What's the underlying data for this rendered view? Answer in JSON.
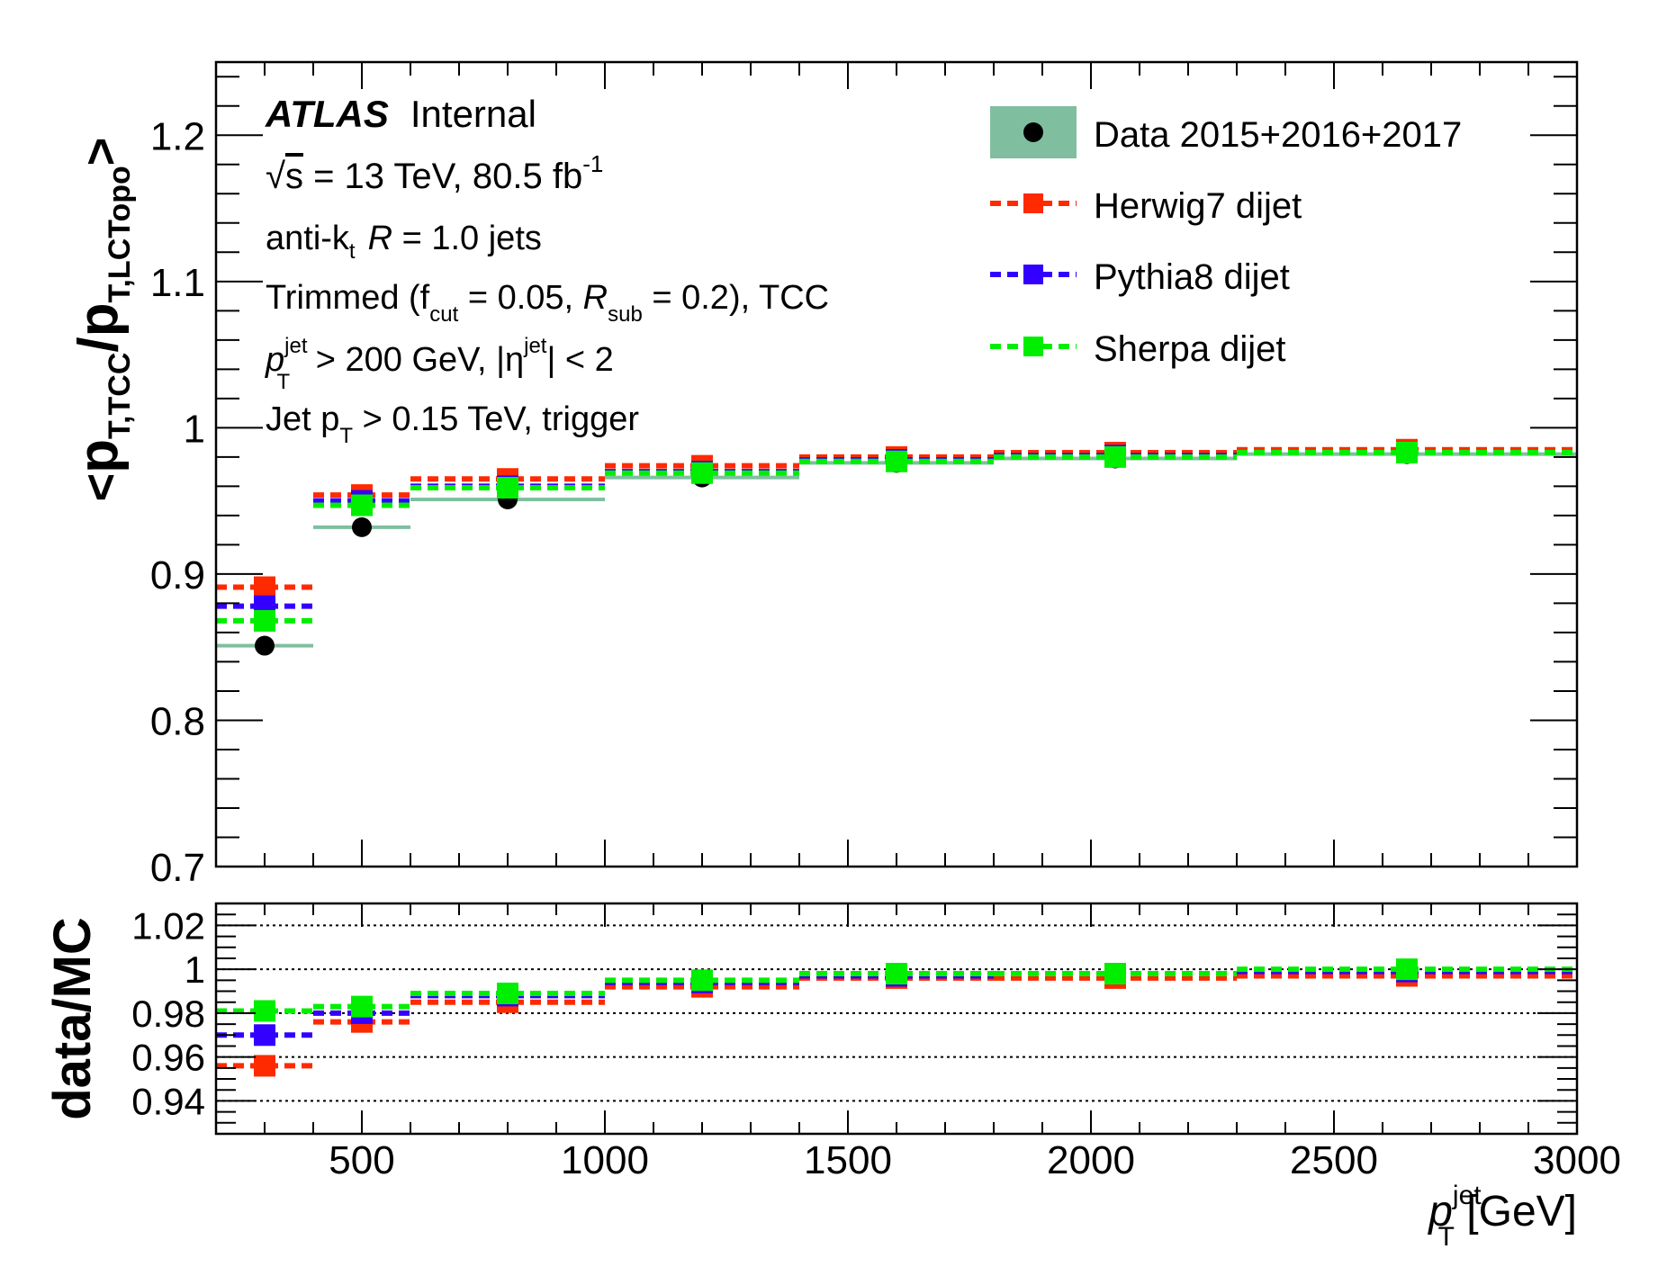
{
  "chart_data": [
    {
      "type": "scatter",
      "panel": "main",
      "ylabel": {
        "open": "<",
        "p1": "p",
        "s1": "T,TCC",
        "slash": "/",
        "p2": "p",
        "s2": "T,LCTopo",
        "close": ">"
      },
      "xlim": [
        200,
        3000
      ],
      "ylim": [
        0.7,
        1.25
      ],
      "y_ticks": [
        0.7,
        0.8,
        0.9,
        1.0,
        1.1,
        1.2
      ],
      "y_tick_labels": [
        "0.7",
        "0.8",
        "0.9",
        "1",
        "1.1",
        "1.2"
      ],
      "bins": [
        [
          200,
          400
        ],
        [
          400,
          600
        ],
        [
          600,
          1000
        ],
        [
          1000,
          1400
        ],
        [
          1400,
          1800
        ],
        [
          1800,
          2300
        ],
        [
          2300,
          3000
        ]
      ],
      "series": [
        {
          "name": "Data 2015+2016+2017",
          "marker": "circle",
          "color": "#000000",
          "band_color": "#7fbf9f",
          "x": [
            300,
            500,
            800,
            1200,
            1600,
            2050,
            2650
          ],
          "y": [
            0.851,
            0.932,
            0.951,
            0.966,
            0.976,
            0.979,
            0.982
          ]
        },
        {
          "name": "Herwig7 dijet",
          "marker": "square",
          "color": "#ff2a00",
          "x": [
            300,
            500,
            800,
            1200,
            1600,
            2050,
            2650
          ],
          "y": [
            0.891,
            0.954,
            0.965,
            0.974,
            0.98,
            0.983,
            0.985
          ]
        },
        {
          "name": "Pythia8 dijet",
          "marker": "square",
          "color": "#3300ff",
          "x": [
            300,
            500,
            800,
            1200,
            1600,
            2050,
            2650
          ],
          "y": [
            0.878,
            0.95,
            0.96,
            0.97,
            0.978,
            0.981,
            0.983
          ]
        },
        {
          "name": "Sherpa dijet",
          "marker": "square",
          "color": "#00ee00",
          "x": [
            300,
            500,
            800,
            1200,
            1600,
            2050,
            2650
          ],
          "y": [
            0.868,
            0.947,
            0.959,
            0.969,
            0.977,
            0.98,
            0.983
          ]
        }
      ],
      "annotations": {
        "atlas": "ATLAS",
        "internal": "Internal",
        "energy": {
          "sqrt": "√",
          "s": "s",
          "mid": " = 13 TeV, 80.5 fb",
          "sup": "-1"
        },
        "jets": {
          "a": "anti-k",
          "t": "t",
          "r": "R",
          "rest": " = 1.0  jets"
        },
        "trimmed": {
          "a": "Trimmed (f",
          "cut": "cut",
          "b": " = 0.05, ",
          "r": "R",
          "sub": "sub",
          "c": " = 0.2), TCC"
        },
        "pt_cut": {
          "p": "p",
          "sup": "jet",
          "sub": "T",
          "mid": " > 200 GeV, |η",
          "sup2": "jet",
          "end": "| < 2"
        },
        "trigger": {
          "a": "Jet p",
          "sub": "T",
          "b": " > 0.15 TeV, trigger"
        }
      }
    },
    {
      "type": "scatter",
      "panel": "ratio",
      "ylabel": "data/MC",
      "xlabel": {
        "p": "p",
        "sup": "jet",
        "sub": "T",
        "unit": " [GeV]"
      },
      "xlim": [
        200,
        3000
      ],
      "ylim": [
        0.925,
        1.03
      ],
      "grid": "dotted horizontal",
      "grid_y": [
        0.94,
        0.96,
        0.98,
        1.0,
        1.02
      ],
      "y_ticks": [
        0.94,
        0.96,
        0.98,
        1.0,
        1.02
      ],
      "y_tick_labels": [
        "0.94",
        "0.96",
        "0.98",
        "1",
        "1.02"
      ],
      "x_ticks": [
        500,
        1000,
        1500,
        2000,
        2500,
        3000
      ],
      "x_tick_labels": [
        "500",
        "1000",
        "1500",
        "2000",
        "2500",
        "3000"
      ],
      "series": [
        {
          "name": "Herwig7 dijet",
          "color": "#ff2a00",
          "x": [
            300,
            500,
            800,
            1200,
            1600,
            2050,
            2650
          ],
          "y": [
            0.956,
            0.976,
            0.985,
            0.992,
            0.996,
            0.996,
            0.997
          ]
        },
        {
          "name": "Pythia8 dijet",
          "color": "#3300ff",
          "x": [
            300,
            500,
            800,
            1200,
            1600,
            2050,
            2650
          ],
          "y": [
            0.97,
            0.98,
            0.988,
            0.994,
            0.997,
            0.998,
            0.999
          ]
        },
        {
          "name": "Sherpa dijet",
          "color": "#00ee00",
          "x": [
            300,
            500,
            800,
            1200,
            1600,
            2050,
            2650
          ],
          "y": [
            0.981,
            0.983,
            0.989,
            0.995,
            0.998,
            0.998,
            1.0
          ]
        }
      ]
    }
  ]
}
